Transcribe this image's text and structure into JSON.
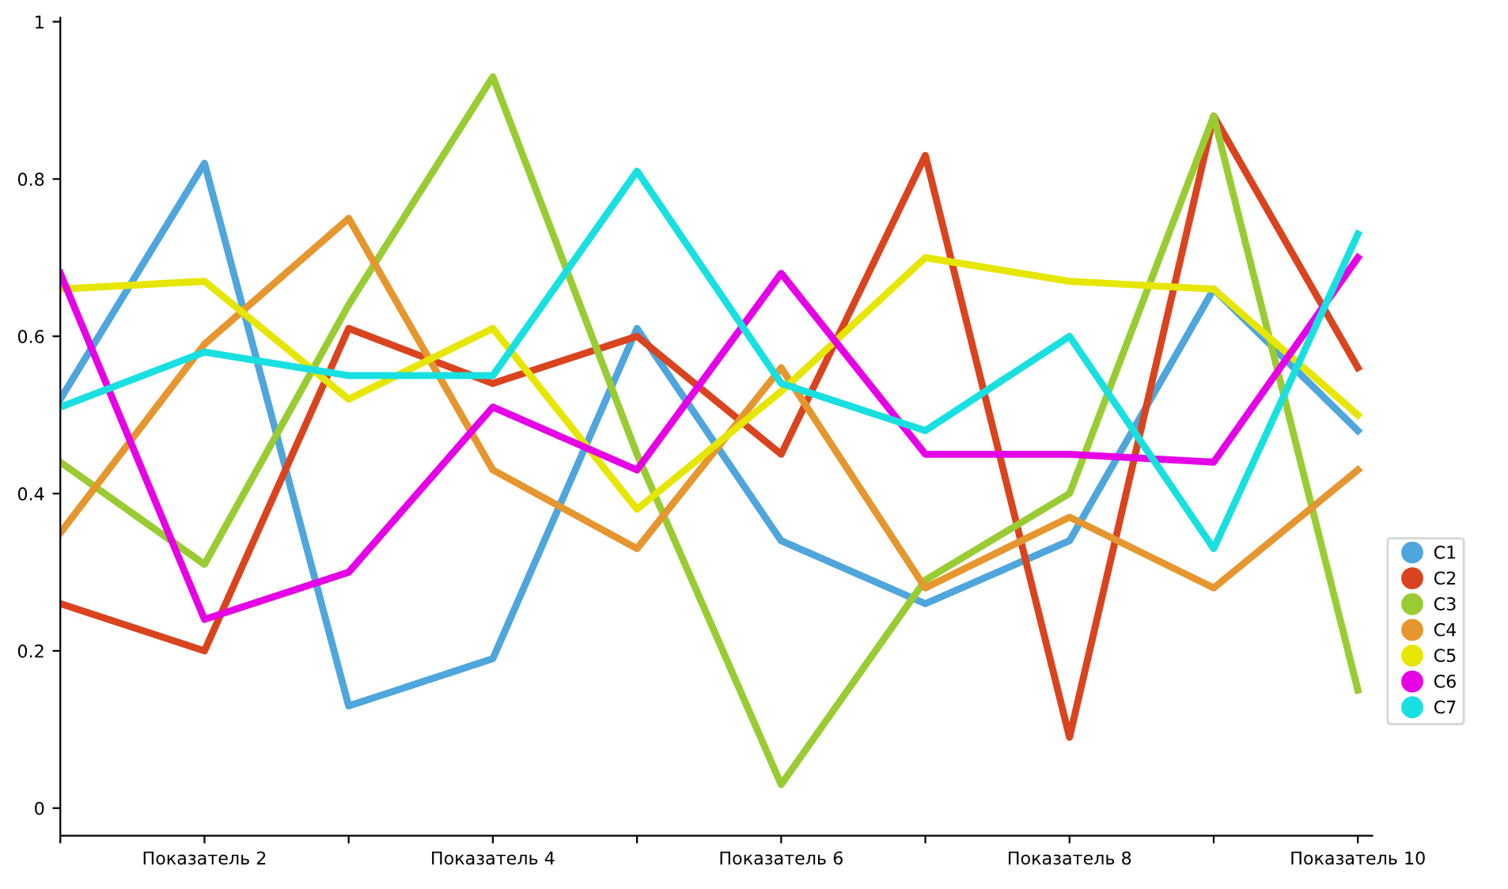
{
  "chart_data": {
    "type": "line",
    "categories": [
      null,
      "Показатель 2",
      null,
      "Показатель 4",
      null,
      "Показатель 6",
      null,
      "Показатель 8",
      null,
      "Показатель 10"
    ],
    "series": [
      {
        "name": "C1",
        "color": "#4ea6dc",
        "values": [
          0.52,
          0.82,
          0.13,
          0.19,
          0.61,
          0.34,
          0.26,
          0.34,
          0.66,
          0.48
        ]
      },
      {
        "name": "C2",
        "color": "#d9441f",
        "values": [
          0.26,
          0.2,
          0.61,
          0.54,
          0.6,
          0.45,
          0.83,
          0.09,
          0.88,
          0.56
        ]
      },
      {
        "name": "C3",
        "color": "#99cc33",
        "values": [
          0.44,
          0.31,
          0.64,
          0.93,
          0.45,
          0.03,
          0.29,
          0.4,
          0.88,
          0.15
        ]
      },
      {
        "name": "C4",
        "color": "#e6962e",
        "values": [
          0.35,
          0.59,
          0.75,
          0.43,
          0.33,
          0.56,
          0.28,
          0.37,
          0.28,
          0.43
        ]
      },
      {
        "name": "C5",
        "color": "#e6e600",
        "values": [
          0.66,
          0.67,
          0.52,
          0.61,
          0.38,
          0.53,
          0.7,
          0.67,
          0.66,
          0.5
        ]
      },
      {
        "name": "C6",
        "color": "#e600e6",
        "values": [
          0.68,
          0.24,
          0.3,
          0.51,
          0.43,
          0.68,
          0.45,
          0.45,
          0.44,
          0.7
        ]
      },
      {
        "name": "C7",
        "color": "#19e0e0",
        "values": [
          0.51,
          0.58,
          0.55,
          0.55,
          0.81,
          0.54,
          0.48,
          0.6,
          0.33,
          0.73
        ]
      }
    ],
    "ylim": [
      -0.035,
      1.005
    ],
    "yticks": [
      0,
      0.2,
      0.4,
      0.6,
      0.8,
      1
    ],
    "grid": false,
    "legend": "right",
    "marker": "none",
    "line_style": "solid"
  }
}
